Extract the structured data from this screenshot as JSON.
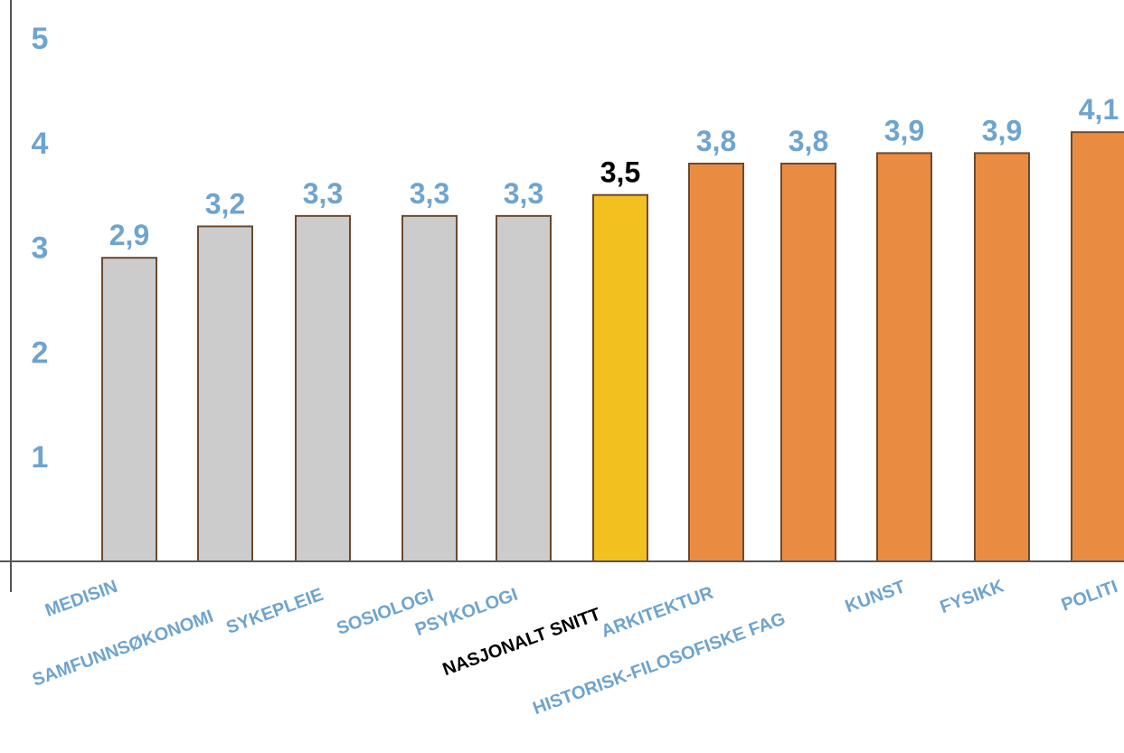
{
  "chart_data": {
    "type": "bar",
    "title": "",
    "xlabel": "",
    "ylabel": "",
    "ylim": [
      0,
      5.8
    ],
    "yticks": [
      {
        "value": 1,
        "label": "1"
      },
      {
        "value": 2,
        "label": "2"
      },
      {
        "value": 3,
        "label": "3"
      },
      {
        "value": 4,
        "label": "4"
      },
      {
        "value": 5,
        "label": "5"
      }
    ],
    "grid": false,
    "legend": "none",
    "bars": [
      {
        "category": "MEDISIN",
        "value": 2.9,
        "value_label": "2,9",
        "group": "below"
      },
      {
        "category": "SAMFUNNSØKONOMI",
        "value": 3.2,
        "value_label": "3,2",
        "group": "below"
      },
      {
        "category": "SYKEPLEIE",
        "value": 3.3,
        "value_label": "3,3",
        "group": "below"
      },
      {
        "category": "SOSIOLOGI",
        "value": 3.3,
        "value_label": "3,3",
        "group": "below"
      },
      {
        "category": "PSYKOLOGI",
        "value": 3.3,
        "value_label": "3,3",
        "group": "below"
      },
      {
        "category": "NASJONALT SNITT",
        "value": 3.5,
        "value_label": "3,5",
        "group": "average"
      },
      {
        "category": "ARKITEKTUR",
        "value": 3.8,
        "value_label": "3,8",
        "group": "above"
      },
      {
        "category": "HISTORISK-FILOSOFISKE FAG",
        "value": 3.8,
        "value_label": "3,8",
        "group": "above"
      },
      {
        "category": "KUNST",
        "value": 3.9,
        "value_label": "3,9",
        "group": "above"
      },
      {
        "category": "FYSIKK",
        "value": 3.9,
        "value_label": "3,9",
        "group": "above"
      },
      {
        "category": "POLITI",
        "value": 4.1,
        "value_label": "4,1",
        "group": "above"
      }
    ],
    "colors": {
      "below": "#cccccc",
      "average": "#f2c11f",
      "above": "#e98c42",
      "bar_stroke": "#6b4a2e",
      "axis": "#555555",
      "label_blue": "#6ea4cf",
      "label_black": "#000000"
    }
  }
}
